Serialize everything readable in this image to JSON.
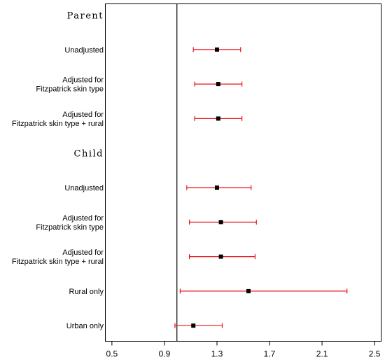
{
  "chart_data": {
    "type": "forest",
    "xlim": [
      0.45,
      2.55
    ],
    "xticks": [
      "0.5",
      "0.9",
      "1.3",
      "1.7",
      "2.1",
      "2.5"
    ],
    "reference_line": 0.995,
    "colors": {
      "ci": "#e8141b",
      "point": "#000000",
      "reference": "#000000"
    },
    "groups": [
      {
        "name": "Parent",
        "rows": [
          {
            "label": [
              "Unadjusted"
            ],
            "estimate": 1.3,
            "lower": 1.12,
            "upper": 1.48
          },
          {
            "label": [
              "Adjusted for",
              "Fitzpatrick skin type"
            ],
            "estimate": 1.31,
            "lower": 1.13,
            "upper": 1.49
          },
          {
            "label": [
              "Adjusted for",
              "Fitzpatrick skin type + rural"
            ],
            "estimate": 1.31,
            "lower": 1.13,
            "upper": 1.49
          }
        ]
      },
      {
        "name": "Child",
        "rows": [
          {
            "label": [
              "Unadjusted"
            ],
            "estimate": 1.3,
            "lower": 1.07,
            "upper": 1.56
          },
          {
            "label": [
              "Adjusted for",
              "Fitzpatrick skin type"
            ],
            "estimate": 1.33,
            "lower": 1.09,
            "upper": 1.6
          },
          {
            "label": [
              "Adjusted for",
              "Fitzpatrick skin type + rural"
            ],
            "estimate": 1.33,
            "lower": 1.09,
            "upper": 1.59
          },
          {
            "label": [
              "Rural only"
            ],
            "estimate": 1.54,
            "lower": 1.02,
            "upper": 2.29
          },
          {
            "label": [
              "Urban only"
            ],
            "estimate": 1.12,
            "lower": 0.98,
            "upper": 1.34
          }
        ]
      }
    ]
  }
}
